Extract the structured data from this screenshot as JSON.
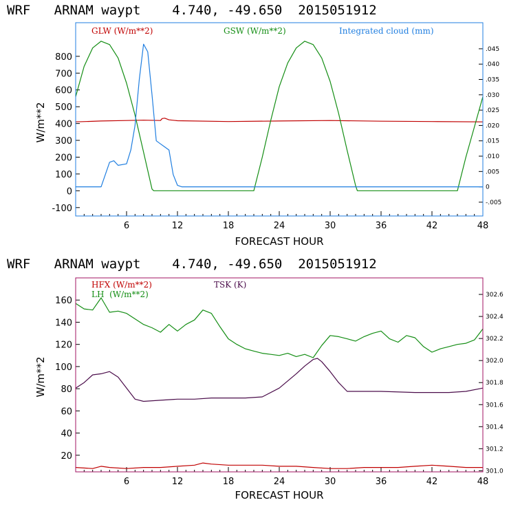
{
  "chart_data": [
    {
      "type": "line",
      "title": "WRF   ARNAM waypt    4.740, -49.650  2015051912",
      "xlabel": "FORECAST HOUR",
      "ylabel": "W/m**2",
      "xlim": [
        0,
        48
      ],
      "ylim": [
        -150,
        1000
      ],
      "x_ticks": [
        "6",
        "12",
        "18",
        "24",
        "30",
        "36",
        "42",
        "48"
      ],
      "y_ticks": [
        "-100",
        "0",
        "100",
        "200",
        "300",
        "400",
        "500",
        "600",
        "700",
        "800"
      ],
      "right_ylim": [
        -0.0095,
        0.0535
      ],
      "right_ticks": [
        "-.005",
        "0",
        ".005",
        ".010",
        ".015",
        ".020",
        ".025",
        ".030",
        ".035",
        ".040",
        ".045"
      ],
      "series": [
        {
          "name": "GLW (W/m**2)",
          "color": "#c00000",
          "axis": "left",
          "x": [
            0,
            3,
            6,
            8,
            10,
            10.2,
            10.5,
            11,
            12,
            18,
            24,
            30,
            36,
            42,
            48
          ],
          "y": [
            410,
            415,
            418,
            420,
            418,
            430,
            432,
            422,
            417,
            412,
            415,
            418,
            414,
            412,
            410
          ]
        },
        {
          "name": "GSW (W/m**2)",
          "color": "#138d13",
          "axis": "left",
          "x": [
            0,
            1,
            2,
            3,
            4,
            5,
            6,
            7,
            8,
            9,
            9.2,
            21,
            22,
            23,
            24,
            25,
            26,
            27,
            28,
            29,
            30,
            31,
            32,
            33,
            33.2,
            45,
            46,
            47,
            48
          ],
          "y": [
            560,
            740,
            850,
            890,
            870,
            790,
            640,
            450,
            230,
            10,
            0,
            0,
            200,
            420,
            620,
            760,
            850,
            890,
            870,
            790,
            650,
            460,
            240,
            30,
            0,
            0,
            200,
            380,
            560
          ]
        },
        {
          "name": "Integrated cloud (mm)",
          "color": "#1f7ee0",
          "axis": "right",
          "x": [
            0,
            3,
            4,
            4.5,
            5,
            6,
            6.5,
            7,
            7.5,
            8,
            8.5,
            9,
            9.5,
            10,
            10.5,
            11,
            11.5,
            12,
            12.5,
            13,
            48
          ],
          "y": [
            0,
            0,
            0.008,
            0.0085,
            0.007,
            0.0075,
            0.012,
            0.02,
            0.035,
            0.0465,
            0.044,
            0.03,
            0.015,
            0.014,
            0.013,
            0.012,
            0.004,
            0.0005,
            0,
            0,
            0
          ]
        }
      ]
    },
    {
      "type": "line",
      "title": "WRF   ARNAM waypt    4.740, -49.650  2015051912",
      "xlabel": "FORECAST HOUR",
      "ylabel": "W/m**2",
      "xlim": [
        0,
        48
      ],
      "ylim": [
        5,
        180
      ],
      "x_ticks": [
        "6",
        "12",
        "18",
        "24",
        "30",
        "36",
        "42",
        "48"
      ],
      "y_ticks": [
        "20",
        "40",
        "60",
        "80",
        "100",
        "120",
        "140",
        "160"
      ],
      "right_ylim": [
        300.99,
        302.75
      ],
      "right_ticks": [
        "301.0",
        "301.2",
        "301.4",
        "301.6",
        "301.8",
        "302.0",
        "302.2",
        "302.4",
        "302.6"
      ],
      "series": [
        {
          "name": "HFX (W/m**2)",
          "color": "#c00000",
          "axis": "left",
          "x": [
            0,
            2,
            3,
            4,
            6,
            8,
            10,
            12,
            14,
            15,
            16,
            18,
            20,
            22,
            24,
            26,
            28,
            30,
            32,
            34,
            36,
            38,
            40,
            42,
            44,
            46,
            48
          ],
          "y": [
            9,
            8,
            10,
            9,
            8,
            9,
            9,
            10,
            11,
            13,
            12,
            11,
            11,
            11,
            10,
            10,
            9,
            8,
            8,
            9,
            9,
            9,
            10,
            11,
            10,
            9,
            9
          ]
        },
        {
          "name": "LH  (W/m**2)",
          "color": "#138d13",
          "axis": "left",
          "x": [
            0,
            1,
            2,
            3,
            4,
            5,
            6,
            7,
            8,
            9,
            10,
            11,
            12,
            13,
            14,
            15,
            16,
            17,
            18,
            19,
            20,
            21,
            22,
            23,
            24,
            25,
            26,
            27,
            28,
            29,
            30,
            31,
            32,
            33,
            34,
            35,
            36,
            37,
            38,
            39,
            40,
            41,
            42,
            43,
            44,
            45,
            46,
            47,
            48
          ],
          "y": [
            157,
            152,
            151,
            162,
            149,
            150,
            148,
            143,
            138,
            135,
            131,
            138,
            132,
            138,
            142,
            151,
            148,
            136,
            125,
            120,
            116,
            114,
            112,
            111,
            110,
            112,
            109,
            111,
            108,
            119,
            128,
            127,
            125,
            123,
            127,
            130,
            132,
            125,
            122,
            128,
            126,
            118,
            113,
            116,
            118,
            120,
            121,
            124,
            134
          ]
        },
        {
          "name": "TSK (K)",
          "color": "#4a0c4a",
          "axis": "right",
          "x": [
            0,
            1,
            2,
            3,
            4,
            5,
            6,
            7,
            8,
            10,
            12,
            14,
            16,
            18,
            20,
            22,
            24,
            26,
            27,
            28,
            28.5,
            29,
            30,
            31,
            32,
            36,
            40,
            44,
            46,
            48
          ],
          "y": [
            301.75,
            301.8,
            301.87,
            301.88,
            301.9,
            301.85,
            301.75,
            301.65,
            301.63,
            301.64,
            301.65,
            301.65,
            301.66,
            301.66,
            301.66,
            301.67,
            301.75,
            301.88,
            301.95,
            302.01,
            302.02,
            301.99,
            301.9,
            301.8,
            301.72,
            301.72,
            301.71,
            301.71,
            301.72,
            301.75
          ]
        }
      ]
    }
  ]
}
